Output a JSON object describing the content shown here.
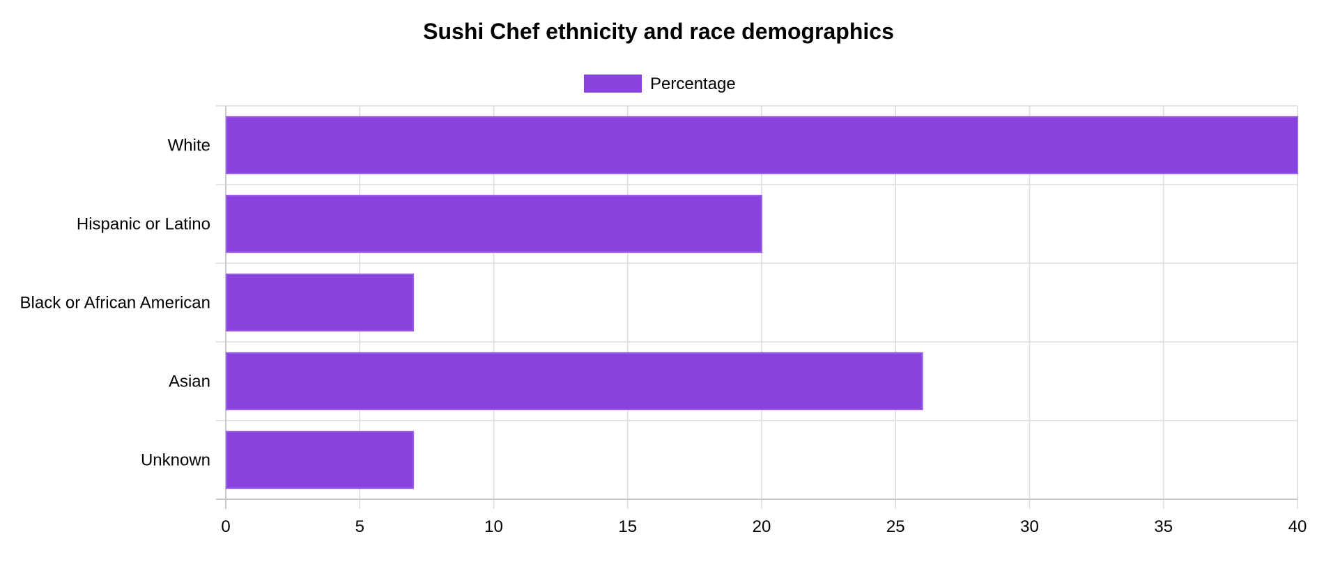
{
  "chart_data": {
    "type": "bar",
    "orientation": "horizontal",
    "title": "Sushi Chef ethnicity and race demographics",
    "categories": [
      "White",
      "Hispanic or Latino",
      "Black or African American",
      "Asian",
      "Unknown"
    ],
    "series": [
      {
        "name": "Percentage",
        "values": [
          40,
          20,
          7,
          26,
          7
        ],
        "color": "#8843df"
      }
    ],
    "xlim": [
      0,
      40
    ],
    "xticks": [
      0,
      5,
      10,
      15,
      20,
      25,
      30,
      35,
      40
    ],
    "grid": true,
    "legend_position": "top"
  }
}
